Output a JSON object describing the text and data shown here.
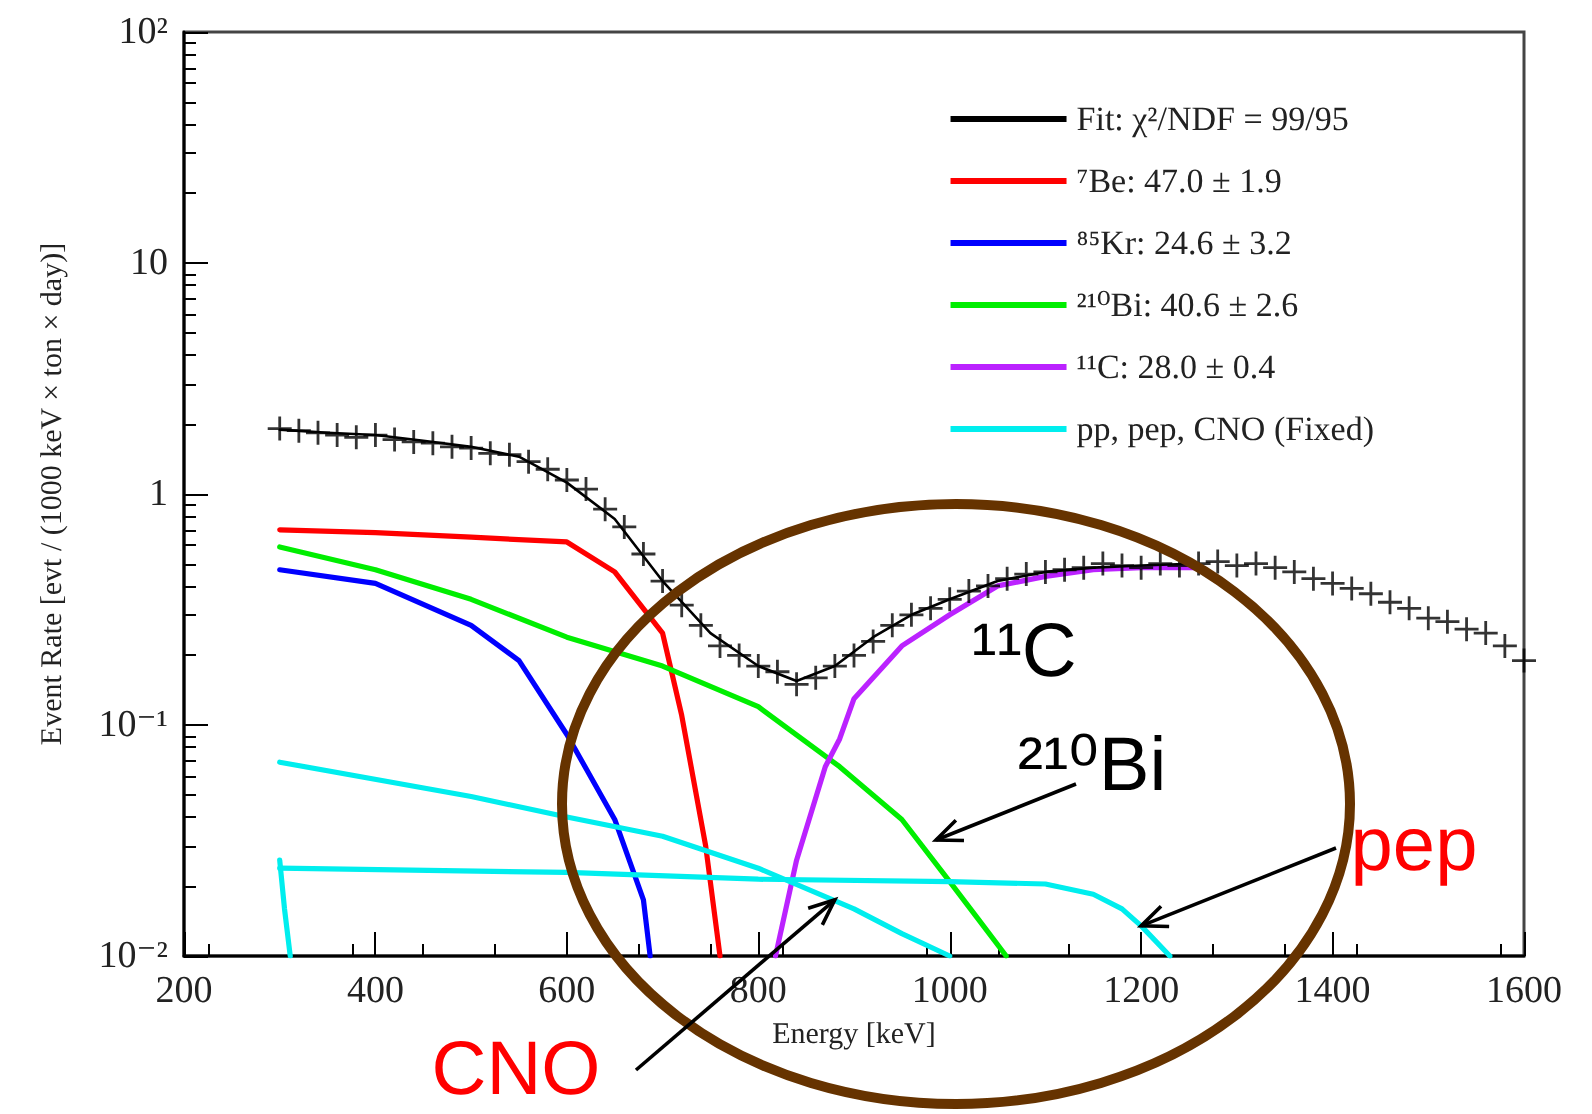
{
  "chart_data": {
    "type": "line",
    "xlabel": "Energy [keV]",
    "ylabel": "Event Rate [evt / (1000 keV × ton × day)]",
    "xlim": [
      200,
      1600
    ],
    "xticks": [
      200,
      400,
      600,
      800,
      1000,
      1200,
      1400,
      1600
    ],
    "ylim": [
      0.01,
      100
    ],
    "yticks": [
      {
        "value": 0.01,
        "label": "10⁻²"
      },
      {
        "value": 0.1,
        "label": "10⁻¹"
      },
      1,
      10,
      {
        "value": 100,
        "label": "10²"
      }
    ],
    "log": "y",
    "grid": false,
    "legend": "top right",
    "line_style": "solid",
    "series": [
      {
        "type": "scatter",
        "marker": "cross",
        "color": "#000000",
        "x": [
          300,
          320,
          340,
          360,
          380,
          400,
          420,
          440,
          460,
          480,
          500,
          520,
          540,
          560,
          580,
          600,
          620,
          640,
          660,
          680,
          700,
          720,
          740,
          760,
          780,
          800,
          820,
          840,
          860,
          880,
          900,
          920,
          940,
          960,
          980,
          1000,
          1020,
          1040,
          1060,
          1080,
          1100,
          1120,
          1140,
          1160,
          1180,
          1200,
          1220,
          1240,
          1260,
          1280,
          1300,
          1320,
          1340,
          1360,
          1380,
          1400,
          1420,
          1440,
          1460,
          1480,
          1500,
          1520,
          1540,
          1560,
          1580,
          1600
        ],
        "values": [
          1.92,
          1.88,
          1.84,
          1.8,
          1.76,
          1.8,
          1.72,
          1.68,
          1.66,
          1.6,
          1.58,
          1.5,
          1.48,
          1.38,
          1.28,
          1.15,
          1.05,
          0.86,
          0.72,
          0.55,
          0.42,
          0.33,
          0.27,
          0.22,
          0.2,
          0.18,
          0.17,
          0.15,
          0.16,
          0.18,
          0.2,
          0.23,
          0.27,
          0.3,
          0.32,
          0.35,
          0.38,
          0.4,
          0.43,
          0.45,
          0.46,
          0.47,
          0.48,
          0.5,
          0.49,
          0.48,
          0.5,
          0.49,
          0.5,
          0.51,
          0.49,
          0.5,
          0.48,
          0.46,
          0.43,
          0.41,
          0.39,
          0.37,
          0.34,
          0.32,
          0.29,
          0.28,
          0.26,
          0.25,
          0.22,
          0.19
        ]
      },
      {
        "name": "Fit: χ²/NDF = 99/95",
        "color": "#000000",
        "x": [
          300,
          350,
          400,
          450,
          500,
          550,
          600,
          650,
          700,
          750,
          800,
          840,
          880,
          920,
          960,
          1000,
          1050,
          1100,
          1150,
          1200,
          1260
        ],
        "values": [
          1.9,
          1.84,
          1.8,
          1.7,
          1.6,
          1.45,
          1.12,
          0.78,
          0.42,
          0.25,
          0.18,
          0.155,
          0.18,
          0.24,
          0.3,
          0.35,
          0.42,
          0.46,
          0.48,
          0.49,
          0.5
        ]
      },
      {
        "name": "⁷Be: 47.0 ± 1.9",
        "color": "#ff0000",
        "x": [
          300,
          400,
          500,
          600,
          650,
          700,
          720,
          745,
          760
        ],
        "values": [
          0.7,
          0.68,
          0.65,
          0.62,
          0.46,
          0.25,
          0.11,
          0.03,
          0.01
        ]
      },
      {
        "name": "⁸⁵Kr: 24.6 ± 3.2",
        "color": "#0000ff",
        "x": [
          300,
          400,
          500,
          550,
          600,
          650,
          680,
          687
        ],
        "values": [
          0.47,
          0.41,
          0.27,
          0.19,
          0.091,
          0.039,
          0.0175,
          0.01
        ]
      },
      {
        "name": "²¹⁰Bi: 40.6 ± 2.6",
        "color": "#00ee00",
        "x": [
          300,
          400,
          500,
          600,
          700,
          800,
          885,
          950,
          1000,
          1030,
          1059
        ],
        "values": [
          0.59,
          0.47,
          0.35,
          0.24,
          0.18,
          0.12,
          0.066,
          0.039,
          0.021,
          0.0144,
          0.01
        ]
      },
      {
        "name": "¹¹C: 28.0 ± 0.4",
        "color": "#bb22ff",
        "x": [
          818,
          840,
          870,
          885,
          900,
          950,
          1000,
          1050,
          1100,
          1150,
          1200,
          1260
        ],
        "values": [
          0.01,
          0.026,
          0.066,
          0.087,
          0.13,
          0.22,
          0.3,
          0.4,
          0.44,
          0.47,
          0.48,
          0.48
        ]
      },
      {
        "name": "pp, pep, CNO (Fixed)",
        "color": "#00eeee",
        "x": [
          300,
          500,
          600,
          700,
          800,
          900,
          950,
          1000
        ],
        "values": [
          0.069,
          0.049,
          0.04,
          0.033,
          0.024,
          0.016,
          0.0125,
          0.01
        ]
      },
      {
        "color": "#00eeee",
        "x": [
          300,
          600,
          800,
          1000,
          1100,
          1150,
          1180,
          1200,
          1230
        ],
        "values": [
          0.024,
          0.023,
          0.0215,
          0.021,
          0.0205,
          0.0185,
          0.016,
          0.0135,
          0.01
        ]
      },
      {
        "color": "#00eeee",
        "x": [
          300,
          305,
          311
        ],
        "values": [
          0.026,
          0.016,
          0.01
        ]
      }
    ],
    "annotations": [
      "¹¹C",
      "²¹⁰Bi",
      {
        "text": "pep",
        "x": 1200,
        "y": 0.0135
      },
      {
        "text": "CNO",
        "x": 880,
        "y": 0.0175
      }
    ]
  }
}
